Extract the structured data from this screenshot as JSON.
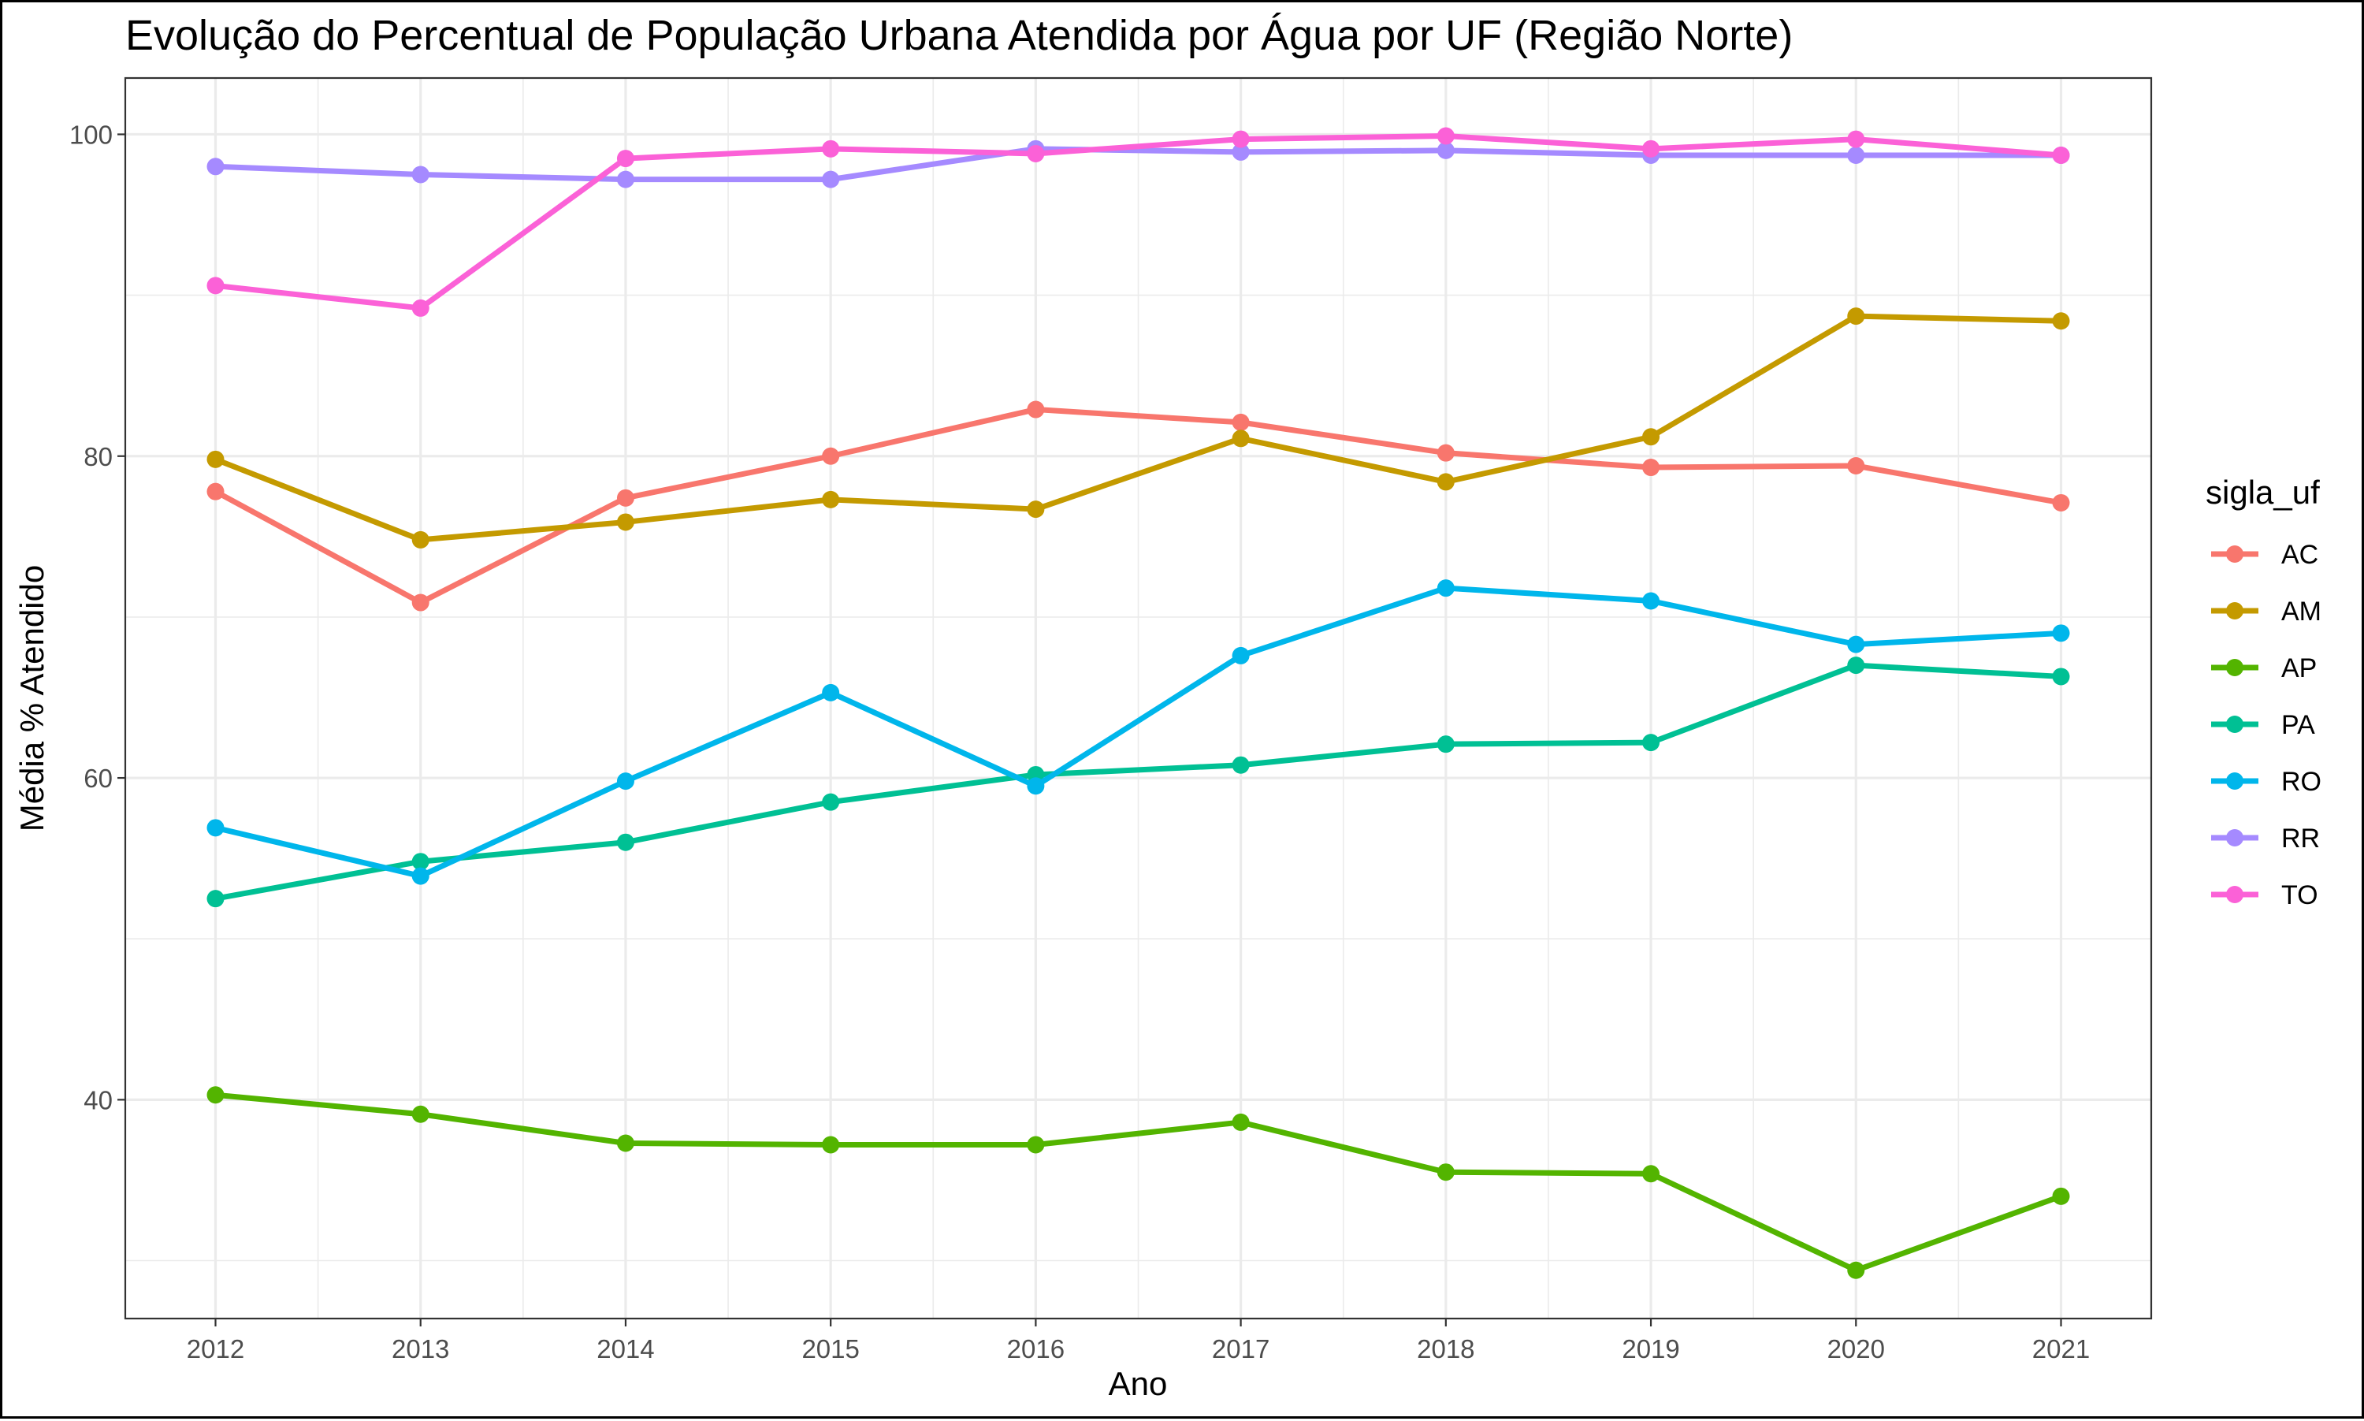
{
  "chart_data": {
    "type": "line",
    "title": "Evolução do Percentual de População Urbana Atendida por Água por UF (Região Norte)",
    "xlabel": "Ano",
    "ylabel": "Média % Atendido",
    "x": [
      2012,
      2013,
      2014,
      2015,
      2016,
      2017,
      2018,
      2019,
      2020,
      2021
    ],
    "x_tick_labels": [
      "2012",
      "2013",
      "2014",
      "2015",
      "2016",
      "2017",
      "2018",
      "2019",
      "2020",
      "2021"
    ],
    "xlim": [
      2011.56,
      2021.44
    ],
    "ylim": [
      26.4,
      103.5
    ],
    "y_ticks": [
      40,
      60,
      80,
      100
    ],
    "y_tick_labels": [
      "40",
      "60",
      "80",
      "100"
    ],
    "grid": true,
    "legend": {
      "title": "sigla_uf",
      "placement": "right"
    },
    "series": [
      {
        "name": "AC",
        "color": "#F8766D",
        "values": [
          77.8,
          70.9,
          77.4,
          80.0,
          82.9,
          82.1,
          80.2,
          79.3,
          79.4,
          77.1
        ]
      },
      {
        "name": "AM",
        "color": "#C49A00",
        "values": [
          79.8,
          74.8,
          75.9,
          77.3,
          76.7,
          81.1,
          78.4,
          81.2,
          88.7,
          88.4
        ]
      },
      {
        "name": "AP",
        "color": "#53B400",
        "values": [
          40.3,
          39.1,
          37.3,
          37.2,
          37.2,
          38.6,
          35.5,
          35.4,
          29.4,
          34.0
        ]
      },
      {
        "name": "PA",
        "color": "#00C094",
        "values": [
          52.5,
          54.8,
          56.0,
          58.5,
          60.2,
          60.8,
          62.1,
          62.2,
          67.0,
          66.3
        ]
      },
      {
        "name": "RO",
        "color": "#00B6EB",
        "values": [
          56.9,
          53.9,
          59.8,
          65.3,
          59.5,
          67.6,
          71.8,
          71.0,
          68.3,
          69.0
        ]
      },
      {
        "name": "RR",
        "color": "#A58AFF",
        "values": [
          98.0,
          97.5,
          97.2,
          97.2,
          99.1,
          98.9,
          99.0,
          98.7,
          98.7,
          98.7
        ]
      },
      {
        "name": "TO",
        "color": "#FB61D7",
        "values": [
          90.6,
          89.2,
          98.5,
          99.1,
          98.8,
          99.7,
          99.9,
          99.1,
          99.7,
          98.7
        ]
      }
    ]
  }
}
